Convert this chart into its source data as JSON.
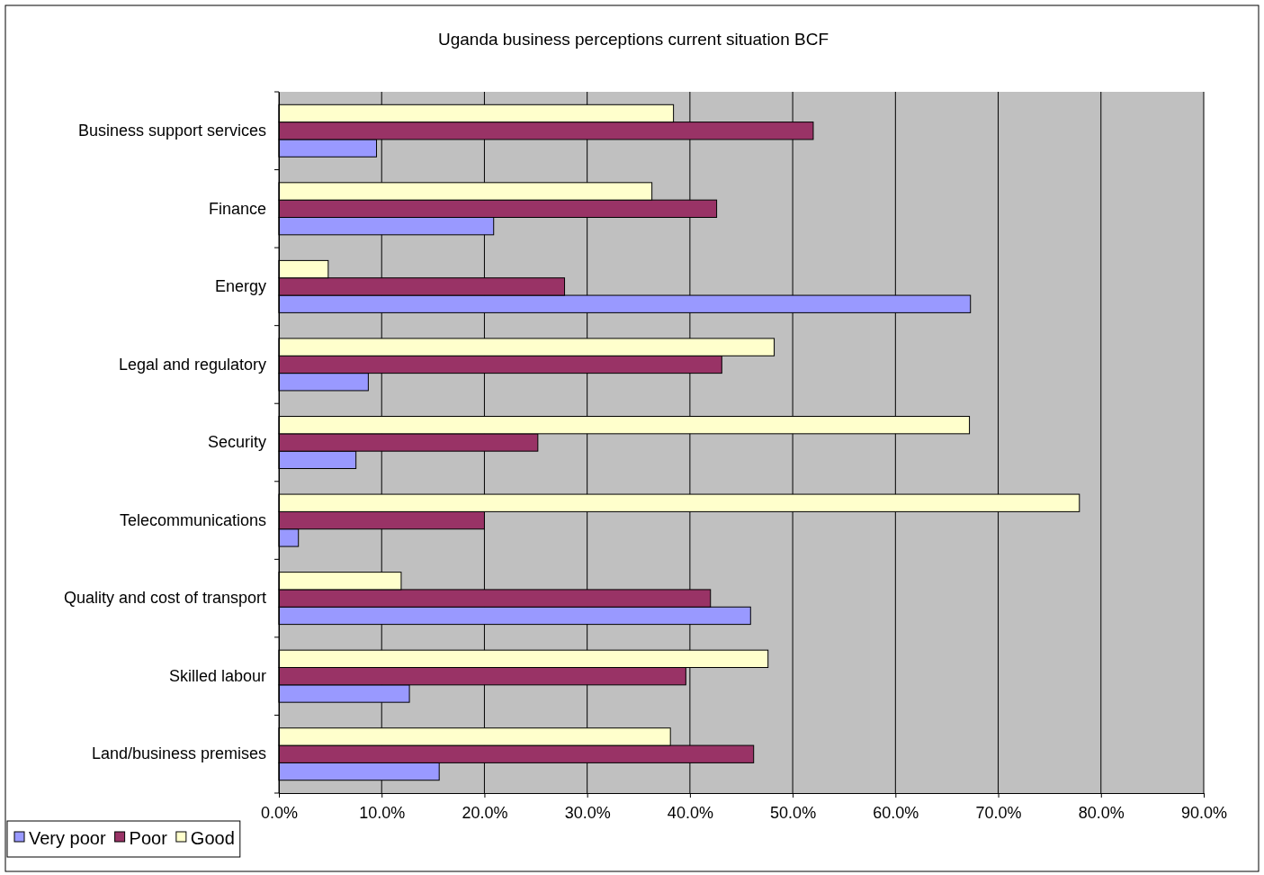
{
  "chart_data": {
    "type": "bar",
    "orientation": "horizontal",
    "title": "Uganda business perceptions current situation BCF",
    "categories": [
      "Business support services",
      "Finance",
      "Energy",
      "Legal and regulatory",
      "Security",
      "Telecommunications",
      "Quality and cost of transport",
      "Skilled labour",
      "Land/business premises"
    ],
    "series": [
      {
        "name": "Very poor",
        "color": "#9999ff",
        "values": [
          9.5,
          20.9,
          67.3,
          8.7,
          7.5,
          1.9,
          45.9,
          12.7,
          15.6
        ]
      },
      {
        "name": "Poor",
        "color": "#993366",
        "values": [
          52.0,
          42.6,
          27.8,
          43.1,
          25.2,
          20.0,
          42.0,
          39.6,
          46.2
        ]
      },
      {
        "name": "Good",
        "color": "#ffffcc",
        "values": [
          38.4,
          36.3,
          4.8,
          48.2,
          67.2,
          77.9,
          11.9,
          47.6,
          38.1
        ]
      }
    ],
    "xlim": [
      0,
      90
    ],
    "xticks": [
      {
        "value": 0,
        "label": "0.0%"
      },
      {
        "value": 10,
        "label": "10.0%"
      },
      {
        "value": 20,
        "label": "20.0%"
      },
      {
        "value": 30,
        "label": "30.0%"
      },
      {
        "value": 40,
        "label": "40.0%"
      },
      {
        "value": 50,
        "label": "50.0%"
      },
      {
        "value": 60,
        "label": "60.0%"
      },
      {
        "value": 70,
        "label": "70.0%"
      },
      {
        "value": 80,
        "label": "80.0%"
      },
      {
        "value": 90,
        "label": "90.0%"
      }
    ],
    "grid": "x",
    "legend": "bottom left"
  }
}
